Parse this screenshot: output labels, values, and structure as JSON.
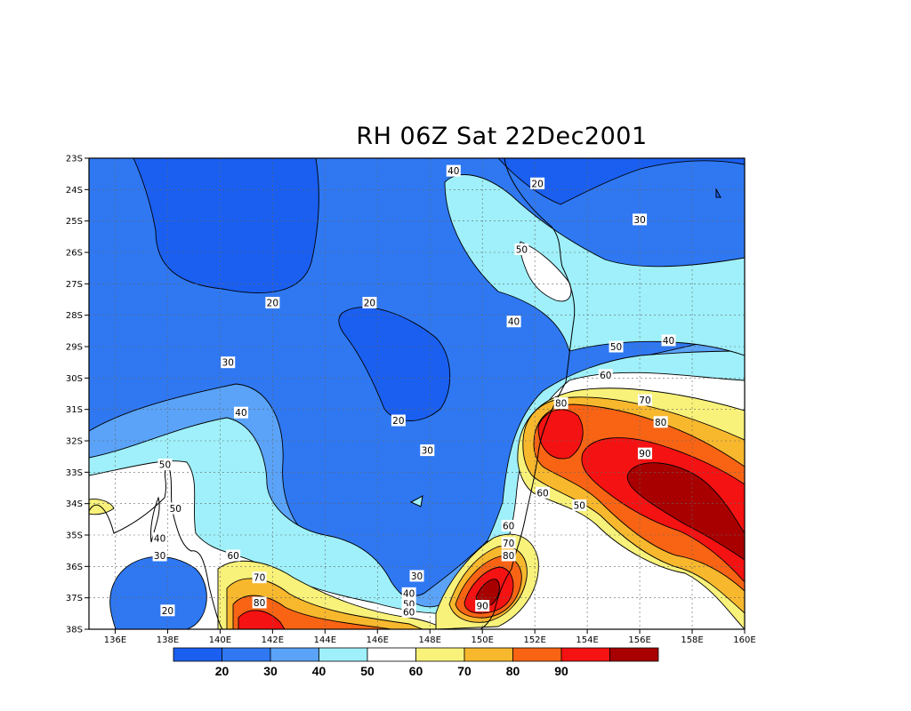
{
  "title": "RH 06Z Sat 22Dec2001",
  "map": {
    "lon_range": [
      135,
      160
    ],
    "lat_range": [
      -38,
      -23
    ],
    "lat_ticks": [
      {
        "value": -23,
        "label": "23S"
      },
      {
        "value": -24,
        "label": "24S"
      },
      {
        "value": -25,
        "label": "25S"
      },
      {
        "value": -26,
        "label": "26S"
      },
      {
        "value": -27,
        "label": "27S"
      },
      {
        "value": -28,
        "label": "28S"
      },
      {
        "value": -29,
        "label": "29S"
      },
      {
        "value": -30,
        "label": "30S"
      },
      {
        "value": -31,
        "label": "31S"
      },
      {
        "value": -32,
        "label": "32S"
      },
      {
        "value": -33,
        "label": "33S"
      },
      {
        "value": -34,
        "label": "34S"
      },
      {
        "value": -35,
        "label": "35S"
      },
      {
        "value": -36,
        "label": "36S"
      },
      {
        "value": -37,
        "label": "37S"
      },
      {
        "value": -38,
        "label": "38S"
      }
    ],
    "lon_ticks": [
      {
        "value": 136,
        "label": "136E"
      },
      {
        "value": 138,
        "label": "138E"
      },
      {
        "value": 140,
        "label": "140E"
      },
      {
        "value": 142,
        "label": "142E"
      },
      {
        "value": 144,
        "label": "144E"
      },
      {
        "value": 146,
        "label": "146E"
      },
      {
        "value": 148,
        "label": "148E"
      },
      {
        "value": 150,
        "label": "150E"
      },
      {
        "value": 152,
        "label": "152E"
      },
      {
        "value": 154,
        "label": "154E"
      },
      {
        "value": 156,
        "label": "156E"
      },
      {
        "value": 158,
        "label": "158E"
      },
      {
        "value": 160,
        "label": "160E"
      }
    ],
    "grid": "dashed",
    "contour_labels": [
      {
        "text": "40",
        "lon": 148.9,
        "lat": -23.4
      },
      {
        "text": "20",
        "lon": 152.1,
        "lat": -23.8
      },
      {
        "text": "30",
        "lon": 156.0,
        "lat": -24.95
      },
      {
        "text": "50",
        "lon": 151.5,
        "lat": -25.9
      },
      {
        "text": "20",
        "lon": 142.0,
        "lat": -27.6
      },
      {
        "text": "20",
        "lon": 145.7,
        "lat": -27.6
      },
      {
        "text": "40",
        "lon": 151.2,
        "lat": -28.2
      },
      {
        "text": "40",
        "lon": 157.1,
        "lat": -28.8
      },
      {
        "text": "50",
        "lon": 155.1,
        "lat": -29.0
      },
      {
        "text": "30",
        "lon": 140.3,
        "lat": -29.5
      },
      {
        "text": "60",
        "lon": 154.7,
        "lat": -29.9
      },
      {
        "text": "70",
        "lon": 156.2,
        "lat": -30.7
      },
      {
        "text": "80",
        "lon": 153.0,
        "lat": -30.8
      },
      {
        "text": "40",
        "lon": 140.8,
        "lat": -31.1
      },
      {
        "text": "20",
        "lon": 146.8,
        "lat": -31.35
      },
      {
        "text": "80",
        "lon": 156.8,
        "lat": -31.4
      },
      {
        "text": "30",
        "lon": 147.9,
        "lat": -32.3
      },
      {
        "text": "90",
        "lon": 156.2,
        "lat": -32.4
      },
      {
        "text": "50",
        "lon": 137.9,
        "lat": -32.75
      },
      {
        "text": "60",
        "lon": 152.3,
        "lat": -33.65
      },
      {
        "text": "50",
        "lon": 153.7,
        "lat": -34.05
      },
      {
        "text": "50",
        "lon": 138.3,
        "lat": -34.15
      },
      {
        "text": "60",
        "lon": 151.0,
        "lat": -34.7
      },
      {
        "text": "40",
        "lon": 137.7,
        "lat": -35.1
      },
      {
        "text": "70",
        "lon": 151.0,
        "lat": -35.25
      },
      {
        "text": "30",
        "lon": 137.7,
        "lat": -35.65
      },
      {
        "text": "80",
        "lon": 151.0,
        "lat": -35.65
      },
      {
        "text": "60",
        "lon": 140.5,
        "lat": -35.65
      },
      {
        "text": "30",
        "lon": 147.5,
        "lat": -36.3
      },
      {
        "text": "70",
        "lon": 141.5,
        "lat": -36.35
      },
      {
        "text": "40",
        "lon": 147.2,
        "lat": -36.85
      },
      {
        "text": "50",
        "lon": 147.2,
        "lat": -37.2
      },
      {
        "text": "80",
        "lon": 141.5,
        "lat": -37.15
      },
      {
        "text": "90",
        "lon": 150.0,
        "lat": -37.25
      },
      {
        "text": "20",
        "lon": 138.0,
        "lat": -37.4
      },
      {
        "text": "60",
        "lon": 147.2,
        "lat": -37.45
      }
    ]
  },
  "colorbar": {
    "colors": [
      "#1a5ff0",
      "#2f78f2",
      "#5aa3f8",
      "#9ff0fa",
      "#ffffff",
      "#f9f27a",
      "#f8b82e",
      "#f86414",
      "#f51212",
      "#a80000"
    ],
    "labels": [
      "20",
      "30",
      "40",
      "50",
      "60",
      "70",
      "80",
      "90"
    ]
  },
  "chart_data": {
    "type": "heatmap",
    "title": "RH 06Z Sat 22Dec2001",
    "variable": "relative humidity",
    "x_range": [
      135,
      160
    ],
    "y_range": [
      -38,
      -23
    ],
    "levels": [
      20,
      30,
      40,
      50,
      60,
      70,
      80,
      90
    ],
    "features": [
      {
        "type": "min",
        "value": 20,
        "lon": 146.8,
        "lat": -29.5
      },
      {
        "type": "min",
        "value": 20,
        "lon": 138.0,
        "lat": -36.8
      },
      {
        "type": "max",
        "value": 90,
        "lon": 157.2,
        "lat": -33.5
      },
      {
        "type": "max",
        "value": 90,
        "lon": 150.2,
        "lat": -36.9
      }
    ]
  }
}
